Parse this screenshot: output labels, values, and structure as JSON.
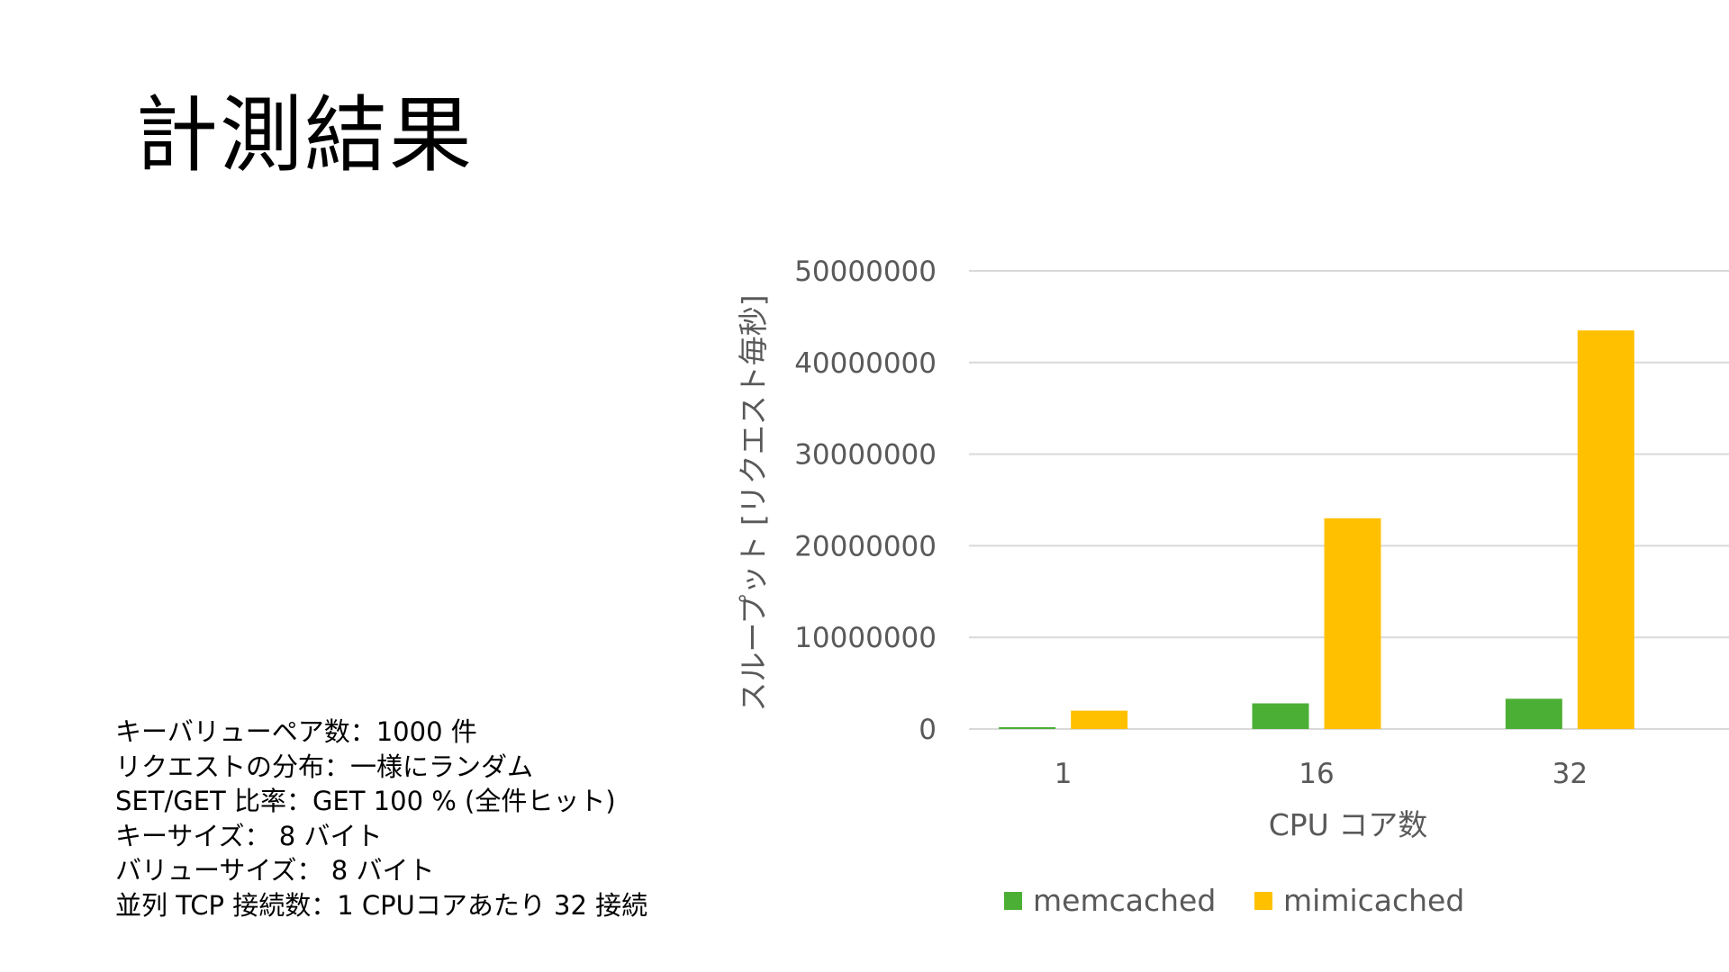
{
  "slide": {
    "title": "計測結果",
    "conditions": [
      "キーバリューペア数：1000 件",
      "リクエストの分布：一様にランダム",
      "SET/GET 比率：GET 100 % (全件ヒット)",
      "キーサイズ： 8 バイト",
      "バリューサイズ： 8 バイト",
      "並列 TCP 接続数：1 CPUコアあたり 32 接続"
    ]
  },
  "chart_data": {
    "type": "bar",
    "title": "",
    "xlabel": "CPU コア数",
    "ylabel": "スループット [リクエスト毎秒]",
    "categories": [
      "1",
      "16",
      "32"
    ],
    "series": [
      {
        "name": "memcached",
        "color": "#4caf35",
        "values": [
          200000,
          2800000,
          3300000
        ]
      },
      {
        "name": "mimicached",
        "color": "#ffc000",
        "values": [
          2000000,
          23000000,
          43500000
        ]
      }
    ],
    "ylim": [
      0,
      50000000
    ],
    "yticks": [
      "0",
      "10000000",
      "20000000",
      "30000000",
      "40000000",
      "50000000"
    ],
    "grid": true,
    "legend_position": "bottom"
  }
}
